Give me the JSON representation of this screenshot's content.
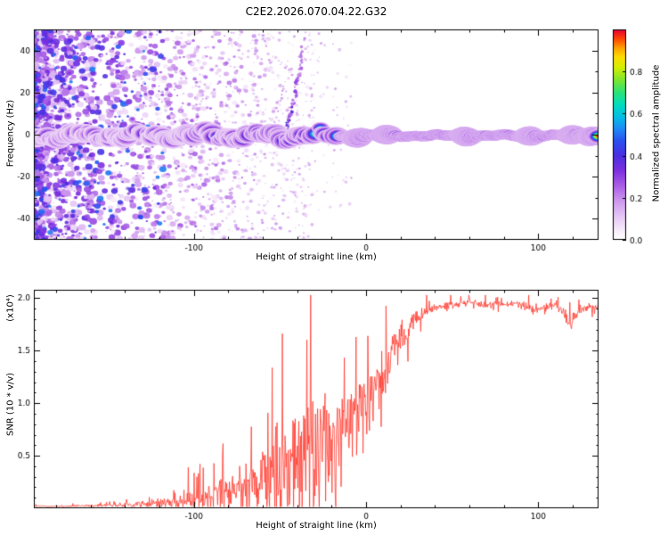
{
  "title": "C2E2.2026.070.04.22.G32",
  "colors": {
    "background": "#ffffff",
    "axis": "#000000",
    "snr_curve": "#ff3b30"
  },
  "chart_data": [
    {
      "type": "heatmap",
      "title": "C2E2.2026.070.04.22.G32",
      "xlabel": "Height of straight line (km)",
      "ylabel": "Frequency (Hz)",
      "xlim": [
        -193,
        135
      ],
      "ylim": [
        -50,
        50
      ],
      "xticks": [
        -100,
        0,
        100
      ],
      "yticks": [
        -40,
        -20,
        0,
        20,
        40
      ],
      "grid": false,
      "colorbar": {
        "label": "Normalized spectral amplitude",
        "ticks": [
          0.0,
          0.2,
          0.4,
          0.6,
          0.8
        ],
        "lim": [
          0,
          1
        ]
      },
      "colormap_stops": [
        [
          0.0,
          "#ffffff"
        ],
        [
          0.04,
          "#f9eefb"
        ],
        [
          0.1,
          "#e9cdf6"
        ],
        [
          0.18,
          "#cf9bee"
        ],
        [
          0.26,
          "#a85ce5"
        ],
        [
          0.33,
          "#7c2fdf"
        ],
        [
          0.4,
          "#4b2ee2"
        ],
        [
          0.47,
          "#2b51ef"
        ],
        [
          0.53,
          "#1e8cf5"
        ],
        [
          0.58,
          "#06bce8"
        ],
        [
          0.64,
          "#00ddc0"
        ],
        [
          0.7,
          "#2ae379"
        ],
        [
          0.76,
          "#7fe62e"
        ],
        [
          0.82,
          "#d6ef00"
        ],
        [
          0.87,
          "#fddc00"
        ],
        [
          0.91,
          "#ffa300"
        ],
        [
          0.95,
          "#ff5000"
        ],
        [
          0.98,
          "#f41c1c"
        ],
        [
          1.0,
          "#e1003e"
        ]
      ],
      "features": {
        "noise_field": {
          "x_range": [
            -193,
            -30
          ],
          "f_range": [
            -50,
            50
          ],
          "count": 2600,
          "amplitude_range": [
            0.04,
            0.38
          ]
        },
        "central_band": {
          "f_center": 0,
          "x_start": -193,
          "x_end": 135,
          "amplitude_profile": [
            [
              -193,
              0.55
            ],
            [
              -140,
              0.58
            ],
            [
              -100,
              0.62
            ],
            [
              -70,
              0.66
            ],
            [
              -45,
              0.72
            ],
            [
              -25,
              0.78
            ],
            [
              -12,
              0.88
            ],
            [
              0,
              0.95
            ],
            [
              30,
              0.95
            ],
            [
              135,
              0.96
            ]
          ],
          "halo_halfwidth_hz": 3.5,
          "wiggle_hz_left": 2.4,
          "wiggle_hz_right": 0.7,
          "bulge_x": [
            -5,
            12,
            58,
            95,
            120,
            131
          ]
        },
        "diagonal_streak": {
          "x_start": -48,
          "f_start": 1,
          "x_end": -36,
          "f_end": 46,
          "amplitude": 0.2
        }
      }
    },
    {
      "type": "line",
      "xlabel": "Height of straight line (km)",
      "ylabel": "SNR (10 * v/v)",
      "ylabel_scale": "(x10⁴)",
      "xlim": [
        -193,
        135
      ],
      "ylim": [
        0,
        2.08
      ],
      "xticks": [
        -100,
        0,
        100
      ],
      "yticks": [
        0.5,
        1.0,
        1.5,
        2.0
      ],
      "grid": false,
      "series": [
        {
          "name": "SNR",
          "color": "#ff3b30",
          "points": [
            [
              -193,
              0.02,
              0.008
            ],
            [
              -175,
              0.02,
              0.01
            ],
            [
              -160,
              0.025,
              0.012
            ],
            [
              -148,
              0.03,
              0.02
            ],
            [
              -138,
              0.035,
              0.03
            ],
            [
              -128,
              0.045,
              0.04
            ],
            [
              -120,
              0.055,
              0.05
            ],
            [
              -112,
              0.07,
              0.07
            ],
            [
              -105,
              0.08,
              0.09
            ],
            [
              -98,
              0.1,
              0.12
            ],
            [
              -92,
              0.11,
              0.14
            ],
            [
              -85,
              0.13,
              0.18
            ],
            [
              -78,
              0.16,
              0.22
            ],
            [
              -72,
              0.18,
              0.26
            ],
            [
              -65,
              0.22,
              0.32
            ],
            [
              -58,
              0.28,
              0.42
            ],
            [
              -52,
              0.33,
              0.52
            ],
            [
              -46,
              0.42,
              0.65
            ],
            [
              -40,
              0.52,
              0.75
            ],
            [
              -35,
              0.62,
              0.72
            ],
            [
              -30,
              0.58,
              0.68
            ],
            [
              -25,
              0.68,
              0.62
            ],
            [
              -20,
              0.63,
              0.58
            ],
            [
              -15,
              0.78,
              0.52
            ],
            [
              -10,
              0.88,
              0.48
            ],
            [
              -5,
              0.95,
              0.44
            ],
            [
              0,
              1.02,
              0.4
            ],
            [
              5,
              1.12,
              0.36
            ],
            [
              10,
              1.28,
              0.32
            ],
            [
              15,
              1.48,
              0.26
            ],
            [
              20,
              1.62,
              0.2
            ],
            [
              25,
              1.72,
              0.15
            ],
            [
              30,
              1.82,
              0.1
            ],
            [
              35,
              1.88,
              0.07
            ],
            [
              40,
              1.91,
              0.05
            ],
            [
              50,
              1.94,
              0.04
            ],
            [
              60,
              1.96,
              0.035
            ],
            [
              70,
              1.93,
              0.045
            ],
            [
              80,
              1.95,
              0.04
            ],
            [
              90,
              1.93,
              0.05
            ],
            [
              98,
              1.88,
              0.06
            ],
            [
              104,
              1.92,
              0.05
            ],
            [
              110,
              1.94,
              0.05
            ],
            [
              115,
              1.86,
              0.08
            ],
            [
              118,
              1.72,
              0.1
            ],
            [
              121,
              1.85,
              0.07
            ],
            [
              126,
              1.92,
              0.05
            ],
            [
              131,
              1.9,
              0.05
            ],
            [
              135,
              1.93,
              0.04
            ]
          ]
        }
      ]
    }
  ]
}
